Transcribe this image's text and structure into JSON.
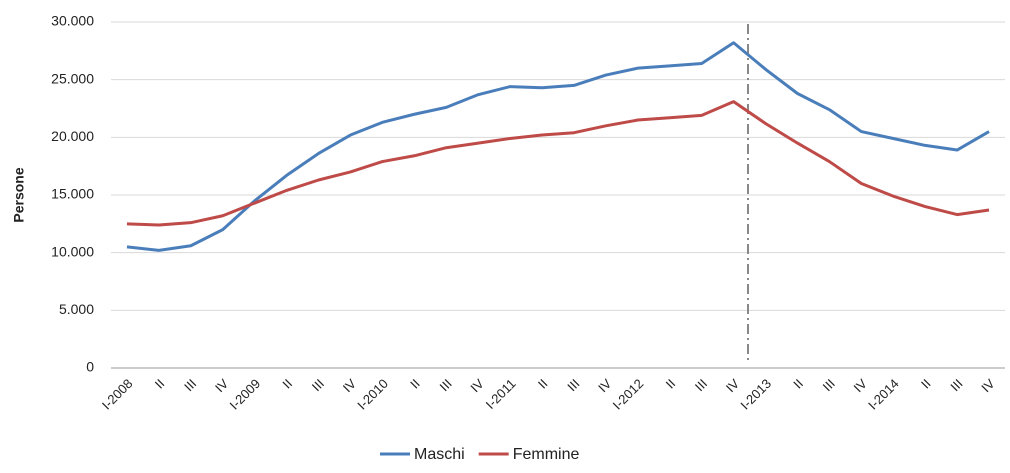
{
  "chart_data": {
    "type": "line",
    "y_label": "Persone",
    "categories": [
      "I-2008",
      "II",
      "III",
      "IV",
      "I-2009",
      "II",
      "III",
      "IV",
      "I-2010",
      "II",
      "III",
      "IV",
      "I-2011",
      "II",
      "III",
      "IV",
      "I-2012",
      "II",
      "III",
      "IV",
      "I-2013",
      "II",
      "III",
      "IV",
      "I-2014",
      "II",
      "III",
      "IV"
    ],
    "series": [
      {
        "name": "Maschi",
        "color": "#4a7ebb",
        "values": [
          10500,
          10200,
          10600,
          12000,
          14500,
          16700,
          18600,
          20200,
          21300,
          22000,
          22600,
          23700,
          24400,
          24300,
          24500,
          25400,
          26000,
          26200,
          26400,
          28200,
          25900,
          23800,
          22400,
          20500,
          19900,
          19300,
          18900,
          20500
        ]
      },
      {
        "name": "Femmine",
        "color": "#be4b48",
        "values": [
          12500,
          12400,
          12600,
          13200,
          14300,
          15400,
          16300,
          17000,
          17900,
          18400,
          19100,
          19500,
          19900,
          20200,
          20400,
          21000,
          21500,
          21700,
          21900,
          23100,
          21200,
          19500,
          17900,
          16000,
          14900,
          14000,
          13300,
          13700
        ]
      }
    ],
    "ylim": [
      0,
      30000
    ],
    "yticks": [
      0,
      {
        "value": 5000,
        "label": "5.000"
      },
      {
        "value": 10000,
        "label": "10.000"
      },
      {
        "value": 15000,
        "label": "15.000"
      },
      {
        "value": 20000,
        "label": "20.000"
      },
      {
        "value": 25000,
        "label": "25.000"
      },
      {
        "value": 30000,
        "label": "30.000"
      }
    ],
    "grid": true,
    "legend": "bottom"
  }
}
